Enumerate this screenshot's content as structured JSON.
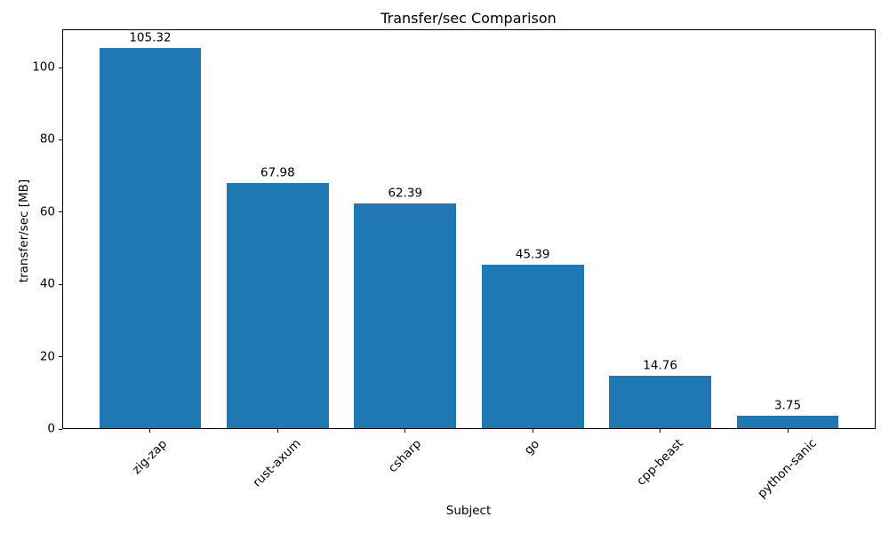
{
  "chart_data": {
    "type": "bar",
    "title": "Transfer/sec Comparison",
    "xlabel": "Subject",
    "ylabel": "transfer/sec [MB]",
    "categories": [
      "zig-zap",
      "rust-axum",
      "csharp",
      "go",
      "cpp-beast",
      "python-sanic"
    ],
    "values": [
      105.32,
      67.98,
      62.39,
      45.39,
      14.76,
      3.75
    ],
    "bar_value_labels": [
      "105.32",
      "67.98",
      "62.39",
      "45.39",
      "14.76",
      "3.75"
    ],
    "yticks": [
      0,
      20,
      40,
      60,
      80,
      100
    ],
    "ylim": [
      0,
      110.59
    ],
    "xtick_rotation_deg": 45,
    "grid": false,
    "legend": null,
    "bar_color": "#1f77b4",
    "axis_color": "#000000",
    "text_color": "#000000",
    "background_color": "#ffffff"
  }
}
